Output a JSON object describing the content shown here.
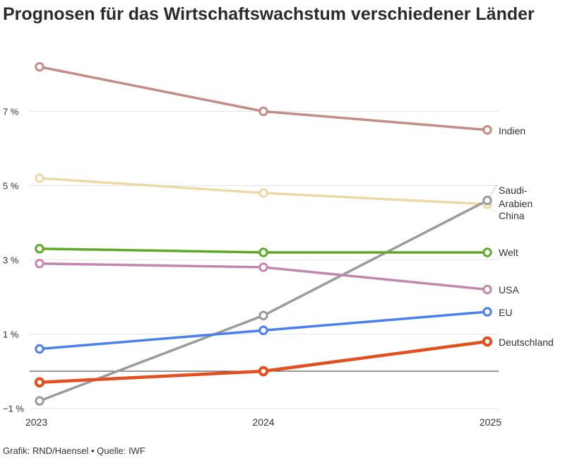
{
  "chart_data": {
    "type": "line",
    "title": "Prognosen für das Wirtschaftswachstum verschiedener Länder",
    "x": [
      "2023",
      "2024",
      "2025"
    ],
    "y_ticks": [
      "−1 %",
      "1 %",
      "3 %",
      "5 %",
      "7 %"
    ],
    "y_tick_values": [
      -1,
      1,
      3,
      5,
      7
    ],
    "ylim": [
      -1,
      8.5
    ],
    "grid": true,
    "series": [
      {
        "name": "Indien",
        "color": "#c38c85",
        "values": [
          8.2,
          7.0,
          6.5
        ]
      },
      {
        "name": "China",
        "color": "#ecd9a6",
        "values": [
          5.2,
          4.8,
          4.5
        ]
      },
      {
        "name": "Saudi-Arabien",
        "color": "#9b9b9b",
        "values": [
          -0.8,
          1.5,
          4.6
        ]
      },
      {
        "name": "Welt",
        "color": "#5fa928",
        "values": [
          3.3,
          3.2,
          3.2
        ]
      },
      {
        "name": "USA",
        "color": "#c387ad",
        "values": [
          2.9,
          2.8,
          2.2
        ]
      },
      {
        "name": "EU",
        "color": "#4a7fef",
        "values": [
          0.6,
          1.1,
          1.6
        ]
      },
      {
        "name": "Deutschland",
        "color": "#e2501f",
        "values": [
          -0.3,
          0.0,
          0.8
        ]
      }
    ]
  },
  "labels": {
    "indien": "Indien",
    "saudi_1": "Saudi-",
    "saudi_2": "Arabien",
    "china": "China",
    "welt": "Welt",
    "usa": "USA",
    "eu": "EU",
    "deutschland": "Deutschland"
  },
  "footer": "Grafik: RND/Haensel • Quelle: IWF"
}
